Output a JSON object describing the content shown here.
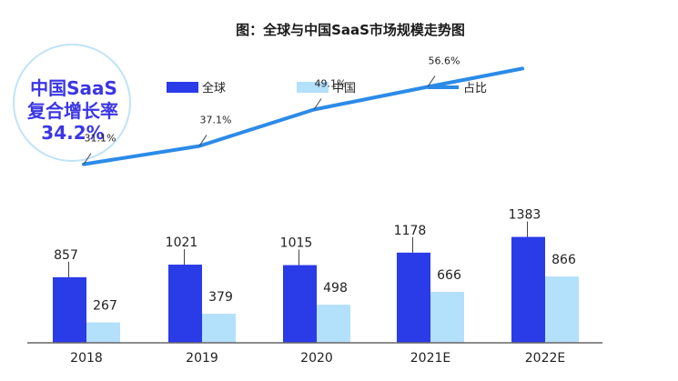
{
  "chart_data": {
    "type": "bar",
    "title": "图：全球与中国SaaS市场规模走势图",
    "categories": [
      "2018",
      "2019",
      "2020",
      "2021E",
      "2022E"
    ],
    "series": [
      {
        "name": "全球",
        "type": "bar",
        "color": "#2a3be8",
        "values": [
          857,
          1021,
          1015,
          1178,
          1383
        ]
      },
      {
        "name": "中国",
        "type": "bar",
        "color": "#b3e0fb",
        "values": [
          267,
          379,
          498,
          666,
          866
        ]
      },
      {
        "name": "占比",
        "type": "line",
        "color": "#2b8be8",
        "values": [
          31.1,
          37.1,
          49.1,
          56.6,
          62.6
        ],
        "labels": [
          "31.1%",
          "37.1%",
          "49.1%",
          "56.6%",
          ""
        ]
      }
    ],
    "legend_position": "top",
    "grid": false
  },
  "badge": {
    "line1": "中国SaaS",
    "line2": "复合增长率",
    "line3": "34.2%"
  }
}
